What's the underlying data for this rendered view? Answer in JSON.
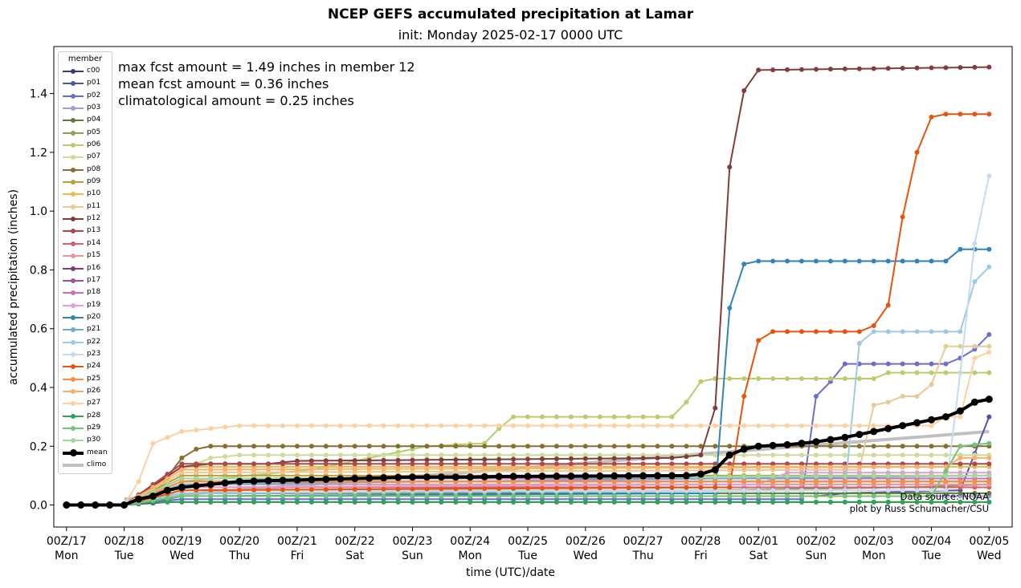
{
  "title": "NCEP GEFS accumulated precipitation at Lamar",
  "subtitle": "init: Monday 2025-02-17 0000 UTC",
  "stats": [
    "max fcst amount = 1.49 inches in member 12",
    "mean fcst amount = 0.36 inches",
    "climatological amount = 0.25 inches"
  ],
  "credits": [
    "Data source: NOAA",
    "plot by Russ Schumacher/CSU"
  ],
  "legend_title": "member",
  "chart_data": {
    "type": "line",
    "title": "NCEP GEFS accumulated precipitation at Lamar",
    "subtitle": "init: Monday 2025-02-17 0000 UTC",
    "xlabel": "time (UTC)/date",
    "ylabel": "accumulated precipitation (inches)",
    "xlim": [
      -0.22,
      16.4
    ],
    "ylim": [
      -0.075,
      1.56
    ],
    "x_unit": "days since 00Z/17",
    "step_days": 0.25,
    "x_ticks": [
      {
        "top": "00Z/17",
        "bottom": "Mon"
      },
      {
        "top": "00Z/18",
        "bottom": "Tue"
      },
      {
        "top": "00Z/19",
        "bottom": "Wed"
      },
      {
        "top": "00Z/20",
        "bottom": "Thu"
      },
      {
        "top": "00Z/21",
        "bottom": "Fri"
      },
      {
        "top": "00Z/22",
        "bottom": "Sat"
      },
      {
        "top": "00Z/23",
        "bottom": "Sun"
      },
      {
        "top": "00Z/24",
        "bottom": "Mon"
      },
      {
        "top": "00Z/25",
        "bottom": "Tue"
      },
      {
        "top": "00Z/26",
        "bottom": "Wed"
      },
      {
        "top": "00Z/27",
        "bottom": "Thu"
      },
      {
        "top": "00Z/28",
        "bottom": "Fri"
      },
      {
        "top": "00Z/01",
        "bottom": "Sat"
      },
      {
        "top": "00Z/02",
        "bottom": "Sun"
      },
      {
        "top": "00Z/03",
        "bottom": "Mon"
      },
      {
        "top": "00Z/04",
        "bottom": "Tue"
      },
      {
        "top": "00Z/05",
        "bottom": "Wed"
      }
    ],
    "y_ticks": [
      "0.0",
      "0.2",
      "0.4",
      "0.6",
      "0.8",
      "1.0",
      "1.2",
      "1.4"
    ],
    "series": [
      {
        "name": "c00",
        "color": "#393b79",
        "bp": [
          [
            0,
            0
          ],
          [
            1,
            0
          ],
          [
            1.75,
            0.01
          ],
          [
            16,
            0.01
          ]
        ]
      },
      {
        "name": "p01",
        "color": "#5254a3",
        "bp": [
          [
            0,
            0
          ],
          [
            1,
            0
          ],
          [
            1.75,
            0.02
          ],
          [
            2,
            0.03
          ],
          [
            13,
            0.03
          ],
          [
            13.5,
            0.04
          ],
          [
            15.5,
            0.05
          ],
          [
            16,
            0.3
          ]
        ]
      },
      {
        "name": "p02",
        "color": "#6b6ecf",
        "bp": [
          [
            0,
            0
          ],
          [
            1,
            0
          ],
          [
            2,
            0.02
          ],
          [
            12.75,
            0.02
          ],
          [
            13,
            0.37
          ],
          [
            13.25,
            0.42
          ],
          [
            13.5,
            0.48
          ],
          [
            15.25,
            0.48
          ],
          [
            15.5,
            0.5
          ],
          [
            15.75,
            0.53
          ],
          [
            16,
            0.58
          ]
        ]
      },
      {
        "name": "p03",
        "color": "#9c9ede",
        "bp": [
          [
            0,
            0
          ],
          [
            1,
            0
          ],
          [
            2,
            0.03
          ],
          [
            16,
            0.03
          ]
        ]
      },
      {
        "name": "p04",
        "color": "#637939",
        "bp": [
          [
            0,
            0
          ],
          [
            1,
            0
          ],
          [
            2,
            0.04
          ],
          [
            16,
            0.04
          ]
        ]
      },
      {
        "name": "p05",
        "color": "#8ca252",
        "bp": [
          [
            0,
            0
          ],
          [
            1,
            0
          ],
          [
            2,
            0.05
          ],
          [
            11,
            0.05
          ],
          [
            14.5,
            0.06
          ],
          [
            16,
            0.07
          ]
        ]
      },
      {
        "name": "p06",
        "color": "#b5cf6b",
        "bp": [
          [
            0,
            0
          ],
          [
            1,
            0
          ],
          [
            2,
            0.08
          ],
          [
            4.25,
            0.12
          ],
          [
            6.25,
            0.2
          ],
          [
            7.25,
            0.21
          ],
          [
            7.5,
            0.26
          ],
          [
            7.75,
            0.3
          ],
          [
            10.5,
            0.3
          ],
          [
            10.75,
            0.35
          ],
          [
            11,
            0.42
          ],
          [
            11.25,
            0.43
          ],
          [
            14,
            0.43
          ],
          [
            14.25,
            0.45
          ],
          [
            16,
            0.45
          ]
        ]
      },
      {
        "name": "p07",
        "color": "#cedb9c",
        "bp": [
          [
            0,
            0
          ],
          [
            1,
            0
          ],
          [
            2,
            0.12
          ],
          [
            2.5,
            0.16
          ],
          [
            3,
            0.17
          ],
          [
            16,
            0.17
          ]
        ]
      },
      {
        "name": "p08",
        "color": "#8c6d31",
        "bp": [
          [
            0,
            0
          ],
          [
            1,
            0
          ],
          [
            1.5,
            0.03
          ],
          [
            2,
            0.16
          ],
          [
            2.25,
            0.19
          ],
          [
            2.5,
            0.2
          ],
          [
            16,
            0.2
          ]
        ]
      },
      {
        "name": "p09",
        "color": "#bd9e39",
        "bp": [
          [
            0,
            0
          ],
          [
            1,
            0
          ],
          [
            2,
            0.1
          ],
          [
            16,
            0.1
          ]
        ]
      },
      {
        "name": "p10",
        "color": "#e7ba52",
        "bp": [
          [
            0,
            0
          ],
          [
            1,
            0
          ],
          [
            2,
            0.13
          ],
          [
            16,
            0.13
          ]
        ]
      },
      {
        "name": "p11",
        "color": "#e7cb94",
        "bp": [
          [
            0,
            0
          ],
          [
            1,
            0
          ],
          [
            2,
            0.11
          ],
          [
            13.75,
            0.12
          ],
          [
            14,
            0.34
          ],
          [
            14.25,
            0.35
          ],
          [
            14.5,
            0.37
          ],
          [
            14.75,
            0.37
          ],
          [
            15,
            0.41
          ],
          [
            15.25,
            0.54
          ],
          [
            16,
            0.54
          ]
        ]
      },
      {
        "name": "p12",
        "color": "#843c39",
        "bp": [
          [
            0,
            0
          ],
          [
            1,
            0
          ],
          [
            2,
            0.13
          ],
          [
            2.5,
            0.14
          ],
          [
            3.5,
            0.14
          ],
          [
            4,
            0.15
          ],
          [
            10.5,
            0.16
          ],
          [
            11,
            0.17
          ],
          [
            11.25,
            0.33
          ],
          [
            11.5,
            1.15
          ],
          [
            11.75,
            1.41
          ],
          [
            12,
            1.48
          ],
          [
            16,
            1.49
          ]
        ]
      },
      {
        "name": "p13",
        "color": "#ad494a",
        "bp": [
          [
            0,
            0
          ],
          [
            1,
            0
          ],
          [
            2,
            0.14
          ],
          [
            16,
            0.14
          ]
        ]
      },
      {
        "name": "p14",
        "color": "#d6616b",
        "bp": [
          [
            0,
            0
          ],
          [
            1,
            0
          ],
          [
            2,
            0.06
          ],
          [
            16,
            0.06
          ]
        ]
      },
      {
        "name": "p15",
        "color": "#e7969c",
        "bp": [
          [
            0,
            0
          ],
          [
            1,
            0
          ],
          [
            2,
            0.07
          ],
          [
            16,
            0.07
          ]
        ]
      },
      {
        "name": "p16",
        "color": "#7b4173",
        "bp": [
          [
            0,
            0
          ],
          [
            1,
            0
          ],
          [
            2,
            0.08
          ],
          [
            16,
            0.08
          ]
        ]
      },
      {
        "name": "p17",
        "color": "#a55194",
        "bp": [
          [
            0,
            0
          ],
          [
            1,
            0
          ],
          [
            2,
            0.09
          ],
          [
            16,
            0.09
          ]
        ]
      },
      {
        "name": "p18",
        "color": "#ce6dbd",
        "bp": [
          [
            0,
            0
          ],
          [
            1,
            0
          ],
          [
            2,
            0.09
          ],
          [
            16,
            0.09
          ]
        ]
      },
      {
        "name": "p19",
        "color": "#de9ed6",
        "bp": [
          [
            0,
            0
          ],
          [
            1,
            0
          ],
          [
            2,
            0.06
          ],
          [
            12,
            0.07
          ],
          [
            12.5,
            0.11
          ],
          [
            16,
            0.11
          ]
        ]
      },
      {
        "name": "p20",
        "color": "#3182bd",
        "bp": [
          [
            0,
            0
          ],
          [
            1,
            0
          ],
          [
            2,
            0.03
          ],
          [
            11.25,
            0.04
          ],
          [
            11.5,
            0.67
          ],
          [
            11.75,
            0.82
          ],
          [
            12,
            0.83
          ],
          [
            15.25,
            0.83
          ],
          [
            15.5,
            0.87
          ],
          [
            16,
            0.87
          ]
        ]
      },
      {
        "name": "p21",
        "color": "#6baed6",
        "bp": [
          [
            0,
            0
          ],
          [
            1,
            0
          ],
          [
            2,
            0.07
          ],
          [
            16,
            0.1
          ]
        ]
      },
      {
        "name": "p22",
        "color": "#9ecae1",
        "bp": [
          [
            0,
            0
          ],
          [
            1,
            0
          ],
          [
            2,
            0.04
          ],
          [
            13.5,
            0.05
          ],
          [
            13.75,
            0.55
          ],
          [
            14,
            0.59
          ],
          [
            15.5,
            0.59
          ],
          [
            15.75,
            0.76
          ],
          [
            16,
            0.81
          ]
        ]
      },
      {
        "name": "p23",
        "color": "#c6dbef",
        "bp": [
          [
            0,
            0
          ],
          [
            1,
            0
          ],
          [
            2,
            0.05
          ],
          [
            15.25,
            0.05
          ],
          [
            15.5,
            0.45
          ],
          [
            15.75,
            0.89
          ],
          [
            16,
            1.12
          ]
        ]
      },
      {
        "name": "p24",
        "color": "#e6550d",
        "bp": [
          [
            0,
            0
          ],
          [
            1,
            0
          ],
          [
            2,
            0.05
          ],
          [
            11.5,
            0.06
          ],
          [
            11.75,
            0.37
          ],
          [
            12,
            0.56
          ],
          [
            12.25,
            0.59
          ],
          [
            13.75,
            0.59
          ],
          [
            14,
            0.61
          ],
          [
            14.25,
            0.68
          ],
          [
            14.5,
            0.98
          ],
          [
            14.75,
            1.2
          ],
          [
            15,
            1.32
          ],
          [
            15.25,
            1.33
          ],
          [
            16,
            1.33
          ]
        ]
      },
      {
        "name": "p25",
        "color": "#fd8d3c",
        "bp": [
          [
            0,
            0
          ],
          [
            1,
            0
          ],
          [
            2,
            0.08
          ],
          [
            16,
            0.08
          ]
        ]
      },
      {
        "name": "p26",
        "color": "#fdae6b",
        "bp": [
          [
            0,
            0
          ],
          [
            1,
            0
          ],
          [
            2,
            0.12
          ],
          [
            15.25,
            0.13
          ],
          [
            15.5,
            0.16
          ],
          [
            16,
            0.16
          ]
        ]
      },
      {
        "name": "p27",
        "color": "#fdd0a2",
        "bp": [
          [
            0,
            0
          ],
          [
            1,
            0
          ],
          [
            1.25,
            0.08
          ],
          [
            1.5,
            0.21
          ],
          [
            1.75,
            0.23
          ],
          [
            2,
            0.25
          ],
          [
            2.5,
            0.26
          ],
          [
            3,
            0.27
          ],
          [
            15,
            0.27
          ],
          [
            15.25,
            0.3
          ],
          [
            15.5,
            0.3
          ],
          [
            15.75,
            0.5
          ],
          [
            16,
            0.52
          ]
        ]
      },
      {
        "name": "p28",
        "color": "#31a354",
        "bp": [
          [
            0,
            0
          ],
          [
            1,
            0
          ],
          [
            1.5,
            0.01
          ],
          [
            16,
            0.01
          ]
        ]
      },
      {
        "name": "p29",
        "color": "#74c476",
        "bp": [
          [
            0,
            0
          ],
          [
            1,
            0
          ],
          [
            2,
            0.03
          ],
          [
            11,
            0.03
          ],
          [
            15,
            0.03
          ],
          [
            15.5,
            0.2
          ],
          [
            16,
            0.21
          ]
        ]
      },
      {
        "name": "p30",
        "color": "#a1d99b",
        "bp": [
          [
            0,
            0
          ],
          [
            1,
            0
          ],
          [
            2,
            0.09
          ],
          [
            16,
            0.1
          ]
        ]
      }
    ],
    "mean": {
      "name": "mean",
      "color": "#000000",
      "bp": [
        [
          0,
          0
        ],
        [
          1,
          0
        ],
        [
          1.25,
          0.02
        ],
        [
          1.5,
          0.03
        ],
        [
          1.75,
          0.05
        ],
        [
          2,
          0.06
        ],
        [
          2.5,
          0.07
        ],
        [
          3,
          0.08
        ],
        [
          4,
          0.085
        ],
        [
          5,
          0.09
        ],
        [
          6,
          0.095
        ],
        [
          7,
          0.095
        ],
        [
          7.5,
          0.097
        ],
        [
          10.75,
          0.1
        ],
        [
          11,
          0.105
        ],
        [
          11.25,
          0.12
        ],
        [
          11.5,
          0.17
        ],
        [
          11.75,
          0.19
        ],
        [
          12,
          0.2
        ],
        [
          12.5,
          0.205
        ],
        [
          13,
          0.215
        ],
        [
          13.5,
          0.23
        ],
        [
          14,
          0.25
        ],
        [
          14.25,
          0.26
        ],
        [
          14.5,
          0.27
        ],
        [
          15,
          0.29
        ],
        [
          15.25,
          0.3
        ],
        [
          15.5,
          0.32
        ],
        [
          15.75,
          0.35
        ],
        [
          16,
          0.36
        ]
      ]
    },
    "climo": {
      "name": "climo",
      "color": "#c0c0c0",
      "bp": [
        [
          1,
          0.02
        ],
        [
          16,
          0.25
        ]
      ]
    }
  }
}
